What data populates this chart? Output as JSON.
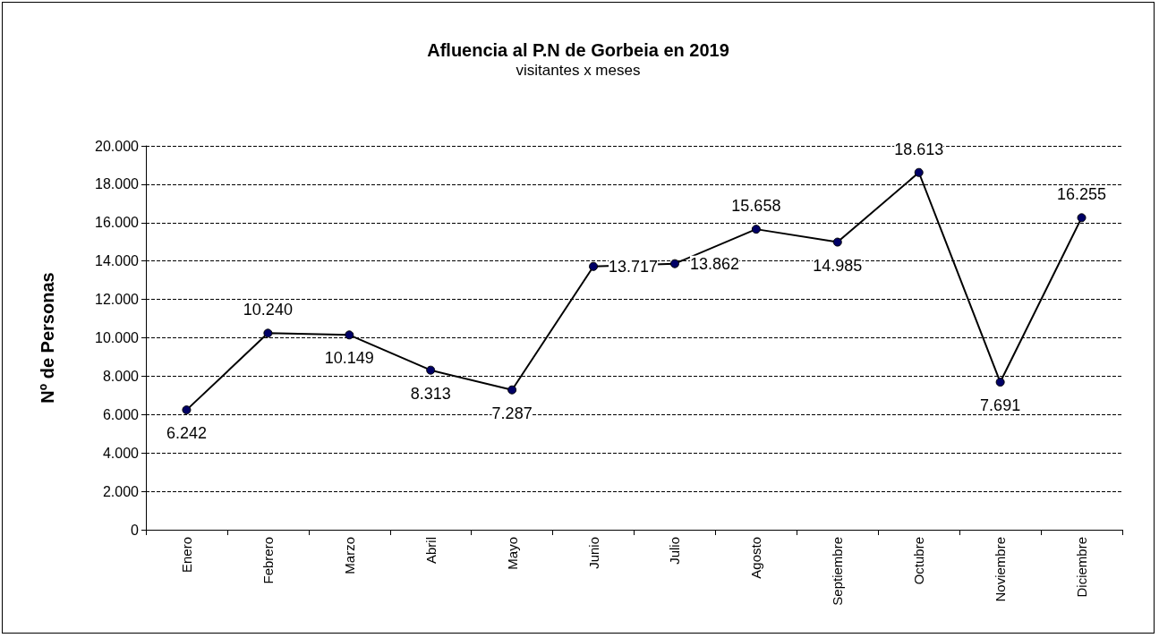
{
  "chart_data": {
    "type": "line",
    "title": "Afluencia al P.N de Gorbeia en 2019",
    "subtitle": "visitantes x meses",
    "ylabel": "Nº de Personas",
    "categories": [
      "Enero",
      "Febrero",
      "Marzo",
      "Abril",
      "Mayo",
      "Junio",
      "Julio",
      "Agosto",
      "Septiembre",
      "Octubre",
      "Noviembre",
      "Diciembre"
    ],
    "series": [
      {
        "color": "#000000",
        "values": [
          6242,
          10240,
          10149,
          8313,
          7287,
          13717,
          13862,
          15658,
          14985,
          18613,
          7691,
          16255
        ],
        "value_labels": [
          "6.242",
          "10.240",
          "10.149",
          "8.313",
          "7.287",
          "13.717",
          "13.862",
          "15.658",
          "14.985",
          "18.613",
          "7.691",
          "16.255"
        ]
      }
    ],
    "ylim": [
      0,
      20000
    ],
    "yticks": [
      {
        "value": 0,
        "label": "0"
      },
      {
        "value": 2000,
        "label": "2.000"
      },
      {
        "value": 4000,
        "label": "4.000"
      },
      {
        "value": 6000,
        "label": "6.000"
      },
      {
        "value": 8000,
        "label": "8.000"
      },
      {
        "value": 10000,
        "label": "10.000"
      },
      {
        "value": 12000,
        "label": "12.000"
      },
      {
        "value": 14000,
        "label": "14.000"
      },
      {
        "value": 16000,
        "label": "16.000"
      },
      {
        "value": 18000,
        "label": "18.000"
      },
      {
        "value": 20000,
        "label": "20.000"
      }
    ],
    "grid": "y",
    "marker": "circle",
    "line_style": "solid"
  }
}
